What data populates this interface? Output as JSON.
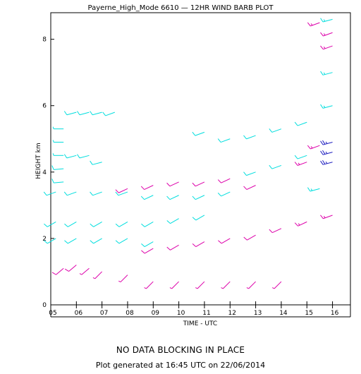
{
  "chart_data": {
    "type": "scatter",
    "title": "Payerne_High_Mode 6610 — 12HR WIND BARB PLOT",
    "xlabel": "TIME - UTC",
    "ylabel": "HEIGHT km",
    "xlim": [
      5.0,
      16.7
    ],
    "ylim": [
      0,
      8.8
    ],
    "x_ticks": [
      "05",
      "06",
      "07",
      "08",
      "09",
      "10",
      "11",
      "12",
      "13",
      "14",
      "15",
      "16"
    ],
    "y_ticks": [
      "0",
      "2",
      "4",
      "6",
      "8"
    ],
    "grid": false,
    "colors": {
      "light": "#00dede",
      "medium": "#dd00aa",
      "strong": "#2020c0",
      "axis": "#000000"
    },
    "series": [
      {
        "color": "light",
        "points": [
          [
            5.5,
            5.3,
            5,
            270
          ],
          [
            5.5,
            4.9,
            5,
            270
          ],
          [
            5.5,
            4.5,
            5,
            270
          ],
          [
            5.5,
            4.1,
            10,
            265
          ],
          [
            5.5,
            3.7,
            10,
            265
          ],
          [
            6.0,
            5.8,
            10,
            255
          ],
          [
            6.5,
            5.8,
            10,
            255
          ],
          [
            7.0,
            5.8,
            10,
            255
          ],
          [
            7.5,
            5.8,
            10,
            250
          ],
          [
            6.0,
            4.5,
            10,
            255
          ],
          [
            6.5,
            4.5,
            10,
            255
          ],
          [
            7.0,
            4.3,
            10,
            255
          ],
          [
            5.2,
            3.4,
            10,
            250
          ],
          [
            6.0,
            3.4,
            10,
            250
          ],
          [
            7.0,
            3.4,
            10,
            250
          ],
          [
            8.0,
            3.4,
            10,
            250
          ],
          [
            9.0,
            3.3,
            10,
            245
          ],
          [
            10.0,
            3.3,
            10,
            245
          ],
          [
            11.0,
            3.3,
            10,
            245
          ],
          [
            12.0,
            3.4,
            10,
            245
          ],
          [
            5.2,
            2.5,
            10,
            240
          ],
          [
            6.0,
            2.5,
            10,
            240
          ],
          [
            7.0,
            2.5,
            10,
            240
          ],
          [
            8.0,
            2.5,
            10,
            240
          ],
          [
            9.0,
            2.5,
            10,
            240
          ],
          [
            10.0,
            2.6,
            10,
            240
          ],
          [
            11.0,
            2.7,
            10,
            240
          ],
          [
            5.2,
            2.0,
            10,
            240
          ],
          [
            6.0,
            2.0,
            10,
            240
          ],
          [
            7.0,
            2.0,
            10,
            240
          ],
          [
            8.0,
            2.0,
            10,
            240
          ],
          [
            9.0,
            1.9,
            10,
            240
          ],
          [
            11.0,
            5.2,
            10,
            250
          ],
          [
            12.0,
            5.0,
            10,
            250
          ],
          [
            13.0,
            5.1,
            10,
            250
          ],
          [
            14.0,
            5.3,
            10,
            250
          ],
          [
            15.0,
            5.5,
            10,
            250
          ],
          [
            13.0,
            4.0,
            10,
            250
          ],
          [
            14.0,
            4.2,
            10,
            250
          ],
          [
            15.0,
            4.5,
            10,
            250
          ],
          [
            15.5,
            3.5,
            15,
            255
          ],
          [
            16.0,
            7.0,
            15,
            255
          ],
          [
            16.0,
            6.0,
            15,
            255
          ],
          [
            16.0,
            8.6,
            15,
            255
          ]
        ]
      },
      {
        "color": "medium",
        "points": [
          [
            5.5,
            1.1,
            10,
            230
          ],
          [
            6.0,
            1.2,
            10,
            230
          ],
          [
            6.5,
            1.1,
            5,
            230
          ],
          [
            7.0,
            1.0,
            5,
            225
          ],
          [
            8.0,
            0.9,
            5,
            225
          ],
          [
            9.0,
            1.7,
            10,
            240
          ],
          [
            10.0,
            1.8,
            10,
            240
          ],
          [
            11.0,
            1.9,
            10,
            240
          ],
          [
            12.0,
            2.0,
            10,
            240
          ],
          [
            13.0,
            2.1,
            10,
            240
          ],
          [
            14.0,
            2.3,
            10,
            245
          ],
          [
            15.0,
            2.5,
            15,
            245
          ],
          [
            16.0,
            2.7,
            15,
            250
          ],
          [
            9.0,
            0.7,
            5,
            225
          ],
          [
            10.0,
            0.7,
            5,
            225
          ],
          [
            11.0,
            0.7,
            5,
            225
          ],
          [
            12.0,
            0.7,
            5,
            225
          ],
          [
            13.0,
            0.7,
            5,
            225
          ],
          [
            14.0,
            0.7,
            5,
            225
          ],
          [
            8.0,
            3.5,
            10,
            245
          ],
          [
            9.0,
            3.6,
            10,
            245
          ],
          [
            10.0,
            3.7,
            10,
            245
          ],
          [
            11.0,
            3.7,
            10,
            245
          ],
          [
            12.0,
            3.8,
            10,
            245
          ],
          [
            13.0,
            3.6,
            10,
            245
          ],
          [
            15.0,
            4.3,
            15,
            250
          ],
          [
            15.5,
            4.8,
            15,
            250
          ],
          [
            16.0,
            7.8,
            15,
            250
          ],
          [
            16.0,
            8.2,
            15,
            250
          ],
          [
            15.5,
            8.5,
            15,
            250
          ]
        ]
      },
      {
        "color": "strong",
        "points": [
          [
            16.0,
            4.9,
            25,
            255
          ],
          [
            16.0,
            4.6,
            25,
            255
          ],
          [
            16.0,
            4.3,
            25,
            255
          ]
        ]
      }
    ]
  },
  "footer": {
    "blocking": "NO DATA BLOCKING IN PLACE",
    "generated": "Plot generated at 16:45 UTC on 22/06/2014"
  }
}
